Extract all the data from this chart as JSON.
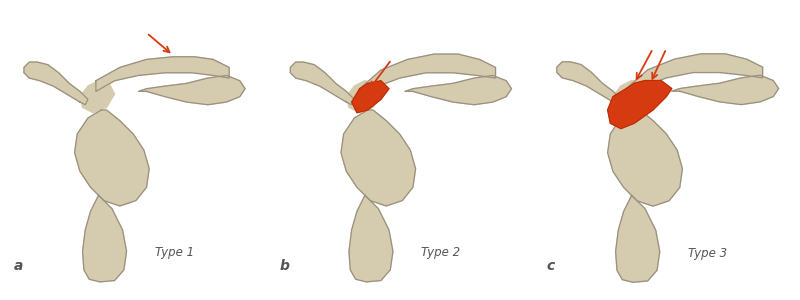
{
  "bg_white": "#ffffff",
  "bg_blue": "#c5d8eb",
  "bone_fill": "#d5ccb0",
  "bone_edge": "#9a9080",
  "red_fill": "#d63a10",
  "red_edge": "#b02800",
  "arrow_color": "#d63a10",
  "text_color": "#555555",
  "label_a": "a",
  "label_b": "b",
  "label_c": "c",
  "type1_label": "Type 1",
  "type2_label": "Type 2",
  "type3_label": "Type 3",
  "fig_width": 8.0,
  "fig_height": 3.0,
  "dpi": 100
}
